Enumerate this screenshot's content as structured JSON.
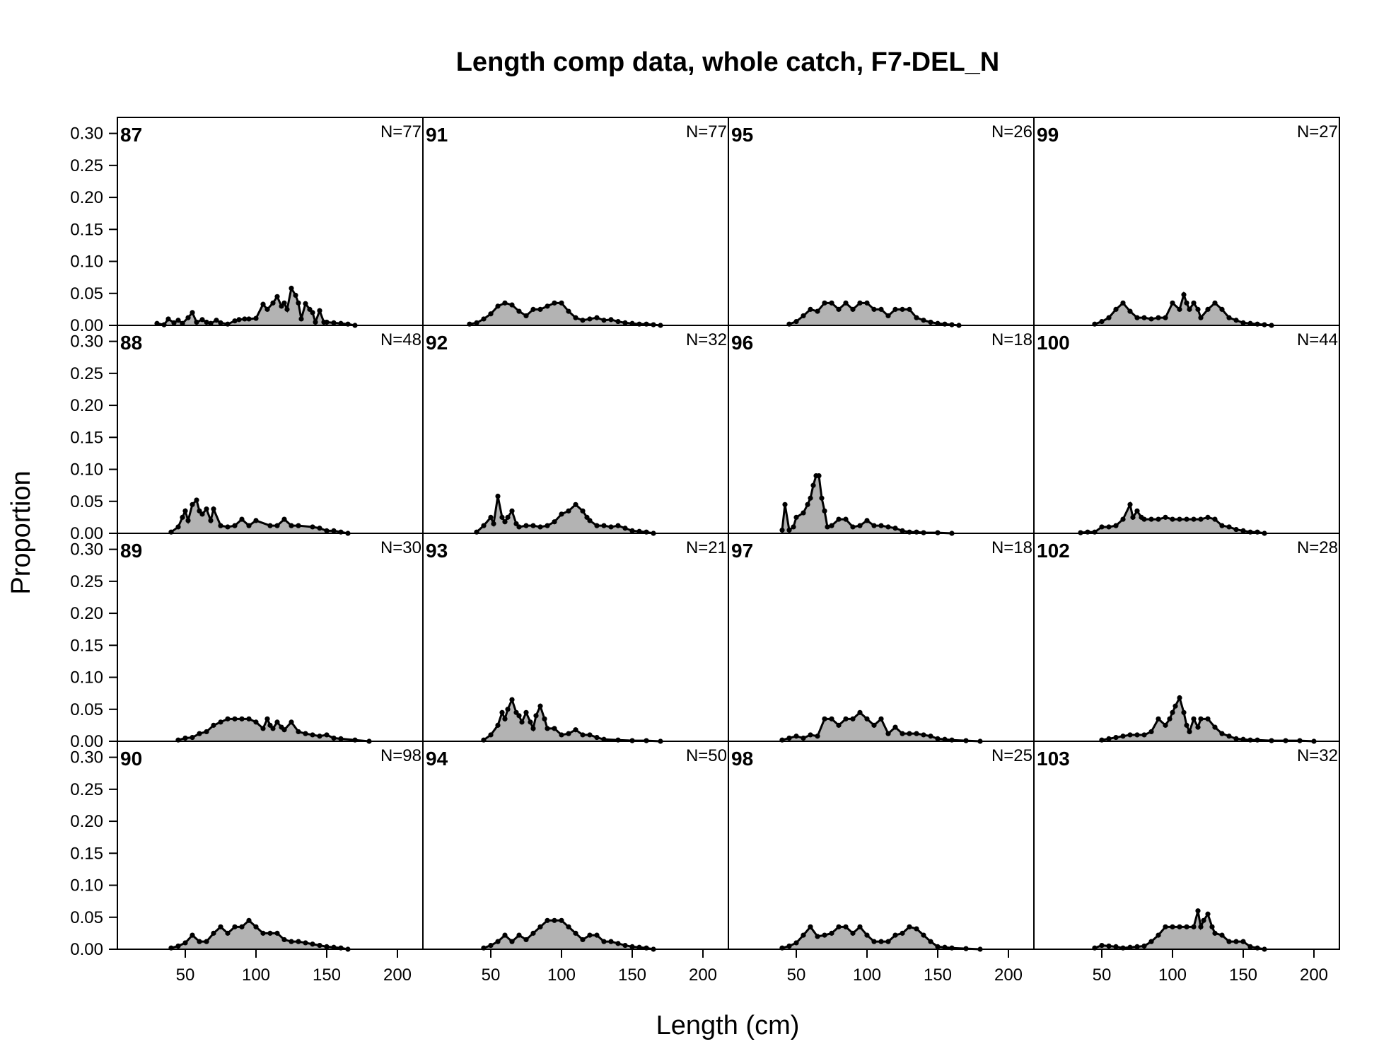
{
  "chart_data": {
    "type": "area",
    "title": "Length comp data, whole catch, F7-DEL_N",
    "xlabel": "Length (cm)",
    "ylabel": "Proportion",
    "xlim": [
      2,
      218
    ],
    "ylim": [
      0,
      0.325
    ],
    "x_ticks": [
      "50",
      "100",
      "150",
      "200"
    ],
    "y_ticks": [
      "0.00",
      "0.05",
      "0.10",
      "0.15",
      "0.20",
      "0.25",
      "0.30"
    ],
    "layout": {
      "rows": 4,
      "cols": 4,
      "order": "column-major"
    },
    "panels": [
      {
        "label": "87",
        "n_label": "N=77",
        "x": [
          30,
          35,
          38,
          42,
          45,
          48,
          52,
          55,
          58,
          62,
          65,
          68,
          72,
          75,
          80,
          85,
          88,
          92,
          95,
          100,
          105,
          108,
          112,
          115,
          118,
          120,
          122,
          125,
          128,
          130,
          132,
          135,
          138,
          140,
          142,
          145,
          148,
          150,
          155,
          160,
          165,
          170
        ],
        "y": [
          0.003,
          0.001,
          0.01,
          0.004,
          0.008,
          0.003,
          0.012,
          0.02,
          0.005,
          0.009,
          0.005,
          0.003,
          0.008,
          0.004,
          0.002,
          0.007,
          0.009,
          0.01,
          0.01,
          0.011,
          0.033,
          0.025,
          0.035,
          0.045,
          0.03,
          0.035,
          0.025,
          0.058,
          0.047,
          0.035,
          0.01,
          0.034,
          0.025,
          0.02,
          0.005,
          0.023,
          0.005,
          0.005,
          0.004,
          0.003,
          0.002,
          0
        ]
      },
      {
        "label": "88",
        "n_label": "N=48",
        "x": [
          40,
          45,
          48,
          50,
          52,
          55,
          58,
          60,
          62,
          65,
          68,
          70,
          75,
          80,
          85,
          90,
          95,
          100,
          110,
          115,
          120,
          125,
          130,
          140,
          145,
          150,
          155,
          160,
          165
        ],
        "y": [
          0.002,
          0.01,
          0.025,
          0.035,
          0.02,
          0.045,
          0.052,
          0.035,
          0.03,
          0.038,
          0.02,
          0.038,
          0.012,
          0.01,
          0.012,
          0.022,
          0.012,
          0.02,
          0.012,
          0.012,
          0.022,
          0.012,
          0.012,
          0.01,
          0.008,
          0.004,
          0.004,
          0.002,
          0
        ]
      },
      {
        "label": "89",
        "n_label": "N=30",
        "x": [
          45,
          50,
          55,
          60,
          65,
          70,
          75,
          80,
          85,
          90,
          95,
          100,
          105,
          108,
          110,
          112,
          115,
          118,
          120,
          125,
          130,
          135,
          140,
          145,
          150,
          155,
          160,
          170,
          180
        ],
        "y": [
          0.002,
          0.005,
          0.006,
          0.012,
          0.015,
          0.025,
          0.03,
          0.035,
          0.035,
          0.035,
          0.035,
          0.03,
          0.02,
          0.035,
          0.025,
          0.02,
          0.03,
          0.022,
          0.018,
          0.03,
          0.015,
          0.012,
          0.01,
          0.008,
          0.01,
          0.005,
          0.004,
          0.002,
          0
        ]
      },
      {
        "label": "90",
        "n_label": "N=98",
        "x": [
          40,
          45,
          50,
          55,
          60,
          65,
          70,
          75,
          80,
          85,
          90,
          95,
          100,
          105,
          110,
          115,
          120,
          125,
          130,
          135,
          140,
          145,
          150,
          155,
          160,
          165
        ],
        "y": [
          0.002,
          0.005,
          0.01,
          0.022,
          0.012,
          0.012,
          0.025,
          0.035,
          0.025,
          0.035,
          0.035,
          0.045,
          0.035,
          0.025,
          0.025,
          0.025,
          0.015,
          0.012,
          0.012,
          0.01,
          0.008,
          0.006,
          0.004,
          0.003,
          0.002,
          0
        ]
      },
      {
        "label": "91",
        "n_label": "N=77",
        "x": [
          35,
          40,
          45,
          50,
          55,
          60,
          65,
          70,
          75,
          80,
          85,
          90,
          95,
          100,
          105,
          110,
          115,
          120,
          125,
          130,
          135,
          140,
          145,
          150,
          155,
          160,
          165,
          170
        ],
        "y": [
          0.002,
          0.004,
          0.01,
          0.018,
          0.03,
          0.035,
          0.032,
          0.022,
          0.015,
          0.025,
          0.025,
          0.03,
          0.035,
          0.035,
          0.022,
          0.012,
          0.008,
          0.01,
          0.012,
          0.008,
          0.009,
          0.006,
          0.004,
          0.003,
          0.002,
          0.002,
          0.001,
          0
        ]
      },
      {
        "label": "92",
        "n_label": "N=32",
        "x": [
          40,
          45,
          50,
          52,
          55,
          58,
          60,
          62,
          65,
          68,
          70,
          75,
          80,
          85,
          90,
          95,
          100,
          105,
          110,
          115,
          118,
          120,
          125,
          130,
          135,
          140,
          145,
          150,
          155,
          160,
          165
        ],
        "y": [
          0.002,
          0.012,
          0.025,
          0.015,
          0.058,
          0.025,
          0.018,
          0.025,
          0.035,
          0.015,
          0.01,
          0.012,
          0.012,
          0.01,
          0.012,
          0.018,
          0.03,
          0.035,
          0.045,
          0.035,
          0.025,
          0.02,
          0.012,
          0.012,
          0.01,
          0.012,
          0.008,
          0.004,
          0.003,
          0.002,
          0
        ]
      },
      {
        "label": "93",
        "n_label": "N=21",
        "x": [
          45,
          50,
          55,
          58,
          60,
          62,
          65,
          68,
          70,
          72,
          75,
          78,
          80,
          82,
          85,
          88,
          90,
          95,
          100,
          105,
          110,
          115,
          120,
          125,
          130,
          140,
          150,
          160,
          170
        ],
        "y": [
          0.002,
          0.01,
          0.025,
          0.045,
          0.035,
          0.05,
          0.065,
          0.045,
          0.04,
          0.03,
          0.045,
          0.03,
          0.02,
          0.04,
          0.055,
          0.035,
          0.02,
          0.02,
          0.01,
          0.012,
          0.018,
          0.01,
          0.01,
          0.006,
          0.003,
          0.002,
          0.001,
          0.001,
          0
        ]
      },
      {
        "label": "94",
        "n_label": "N=50",
        "x": [
          45,
          50,
          55,
          60,
          65,
          70,
          75,
          80,
          85,
          90,
          95,
          100,
          105,
          110,
          115,
          120,
          125,
          130,
          135,
          140,
          145,
          150,
          155,
          160,
          165
        ],
        "y": [
          0.002,
          0.006,
          0.012,
          0.022,
          0.012,
          0.022,
          0.015,
          0.025,
          0.035,
          0.045,
          0.045,
          0.045,
          0.035,
          0.025,
          0.015,
          0.022,
          0.022,
          0.012,
          0.012,
          0.009,
          0.006,
          0.004,
          0.003,
          0.002,
          0
        ]
      },
      {
        "label": "95",
        "n_label": "N=26",
        "x": [
          45,
          50,
          55,
          60,
          65,
          70,
          75,
          80,
          85,
          90,
          95,
          100,
          105,
          110,
          115,
          120,
          125,
          130,
          135,
          140,
          145,
          150,
          155,
          160,
          165
        ],
        "y": [
          0.002,
          0.006,
          0.015,
          0.025,
          0.022,
          0.035,
          0.035,
          0.025,
          0.035,
          0.025,
          0.035,
          0.035,
          0.025,
          0.025,
          0.015,
          0.025,
          0.025,
          0.025,
          0.012,
          0.008,
          0.005,
          0.003,
          0.002,
          0.001,
          0
        ]
      },
      {
        "label": "96",
        "n_label": "N=18",
        "x": [
          40,
          42,
          45,
          48,
          50,
          55,
          58,
          60,
          62,
          64,
          66,
          68,
          70,
          72,
          75,
          80,
          85,
          90,
          95,
          100,
          105,
          110,
          115,
          120,
          125,
          130,
          135,
          140,
          150,
          160
        ],
        "y": [
          0.005,
          0.045,
          0.005,
          0.01,
          0.025,
          0.032,
          0.045,
          0.055,
          0.075,
          0.09,
          0.09,
          0.055,
          0.035,
          0.01,
          0.012,
          0.022,
          0.022,
          0.01,
          0.012,
          0.02,
          0.012,
          0.012,
          0.01,
          0.008,
          0.004,
          0.002,
          0.002,
          0.001,
          0.001,
          0
        ]
      },
      {
        "label": "97",
        "n_label": "N=18",
        "x": [
          40,
          45,
          50,
          55,
          60,
          65,
          70,
          75,
          80,
          85,
          90,
          95,
          100,
          105,
          110,
          115,
          120,
          125,
          130,
          135,
          140,
          145,
          150,
          155,
          160,
          170,
          180
        ],
        "y": [
          0.002,
          0.005,
          0.008,
          0.005,
          0.01,
          0.008,
          0.035,
          0.035,
          0.025,
          0.035,
          0.035,
          0.045,
          0.035,
          0.025,
          0.035,
          0.012,
          0.022,
          0.012,
          0.012,
          0.012,
          0.01,
          0.008,
          0.004,
          0.003,
          0.002,
          0.001,
          0
        ]
      },
      {
        "label": "98",
        "n_label": "N=25",
        "x": [
          40,
          45,
          50,
          55,
          60,
          65,
          70,
          75,
          80,
          85,
          90,
          95,
          100,
          105,
          110,
          115,
          120,
          125,
          130,
          135,
          140,
          145,
          150,
          155,
          160,
          170,
          180
        ],
        "y": [
          0.002,
          0.005,
          0.01,
          0.022,
          0.035,
          0.02,
          0.022,
          0.025,
          0.035,
          0.035,
          0.025,
          0.035,
          0.022,
          0.012,
          0.012,
          0.012,
          0.022,
          0.025,
          0.035,
          0.032,
          0.022,
          0.012,
          0.004,
          0.003,
          0.002,
          0.001,
          0
        ]
      },
      {
        "label": "99",
        "n_label": "N=27",
        "x": [
          45,
          50,
          55,
          60,
          65,
          70,
          75,
          80,
          85,
          90,
          95,
          100,
          105,
          108,
          110,
          112,
          115,
          118,
          120,
          125,
          130,
          135,
          140,
          145,
          150,
          155,
          160,
          165,
          170
        ],
        "y": [
          0.002,
          0.006,
          0.012,
          0.025,
          0.035,
          0.022,
          0.012,
          0.012,
          0.01,
          0.012,
          0.012,
          0.035,
          0.025,
          0.048,
          0.035,
          0.025,
          0.035,
          0.025,
          0.012,
          0.025,
          0.035,
          0.025,
          0.012,
          0.008,
          0.004,
          0.003,
          0.002,
          0.001,
          0
        ]
      },
      {
        "label": "100",
        "n_label": "N=44",
        "x": [
          35,
          40,
          45,
          50,
          55,
          60,
          65,
          70,
          72,
          75,
          78,
          80,
          85,
          90,
          95,
          100,
          105,
          110,
          115,
          120,
          125,
          130,
          135,
          140,
          145,
          150,
          155,
          160,
          165
        ],
        "y": [
          0.001,
          0.002,
          0.002,
          0.01,
          0.01,
          0.012,
          0.022,
          0.045,
          0.025,
          0.035,
          0.025,
          0.022,
          0.022,
          0.022,
          0.025,
          0.022,
          0.022,
          0.022,
          0.022,
          0.022,
          0.025,
          0.022,
          0.012,
          0.01,
          0.006,
          0.004,
          0.002,
          0.002,
          0
        ]
      },
      {
        "label": "102",
        "n_label": "N=28",
        "x": [
          50,
          55,
          60,
          65,
          70,
          75,
          80,
          85,
          90,
          95,
          98,
          100,
          102,
          105,
          108,
          110,
          112,
          115,
          118,
          120,
          125,
          130,
          135,
          140,
          145,
          150,
          155,
          160,
          170,
          180,
          190,
          200
        ],
        "y": [
          0.002,
          0.004,
          0.006,
          0.008,
          0.01,
          0.01,
          0.01,
          0.015,
          0.035,
          0.025,
          0.035,
          0.045,
          0.055,
          0.068,
          0.045,
          0.025,
          0.015,
          0.035,
          0.022,
          0.035,
          0.035,
          0.022,
          0.012,
          0.008,
          0.004,
          0.003,
          0.002,
          0.002,
          0.001,
          0.001,
          0.001,
          0
        ]
      },
      {
        "label": "103",
        "n_label": "N=32",
        "x": [
          45,
          50,
          55,
          60,
          65,
          70,
          75,
          80,
          85,
          90,
          95,
          100,
          105,
          110,
          115,
          118,
          120,
          122,
          125,
          128,
          130,
          135,
          140,
          145,
          150,
          155,
          160,
          165
        ],
        "y": [
          0.002,
          0.006,
          0.005,
          0.004,
          0.002,
          0.003,
          0.004,
          0.005,
          0.012,
          0.022,
          0.035,
          0.035,
          0.035,
          0.035,
          0.035,
          0.06,
          0.035,
          0.045,
          0.055,
          0.035,
          0.025,
          0.022,
          0.012,
          0.012,
          0.012,
          0.004,
          0.002,
          0
        ]
      }
    ]
  }
}
